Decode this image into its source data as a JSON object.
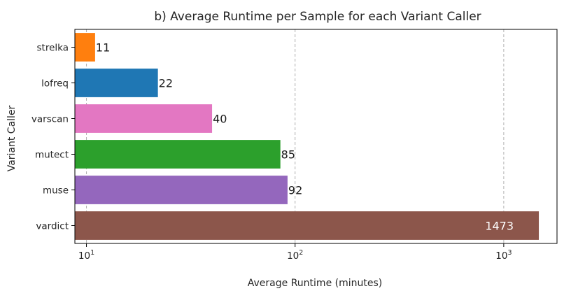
{
  "chart_data": {
    "type": "bar",
    "orientation": "horizontal",
    "title": "b) Average Runtime per Sample for each Variant Caller",
    "xlabel": "Average Runtime (minutes)",
    "ylabel": "Variant Caller",
    "xscale": "log",
    "xlim": [
      8.8,
      1800
    ],
    "x_ticks": [
      {
        "base": "10",
        "exp": "1",
        "value": 10
      },
      {
        "base": "10",
        "exp": "2",
        "value": 100
      },
      {
        "base": "10",
        "exp": "3",
        "value": 1000
      }
    ],
    "grid": "x-dashed",
    "categories": [
      "strelka",
      "lofreq",
      "varscan",
      "mutect",
      "muse",
      "vardict"
    ],
    "values": [
      11,
      22,
      40,
      85,
      92,
      1473
    ],
    "labels": [
      "11",
      "22",
      "40",
      "85",
      "92",
      "1473"
    ],
    "colors": [
      "#ff7f0e",
      "#1f77b4",
      "#e377c2",
      "#2ca02c",
      "#9467bd",
      "#8c564b"
    ],
    "label_inside_bar": [
      false,
      false,
      false,
      false,
      false,
      true
    ]
  }
}
